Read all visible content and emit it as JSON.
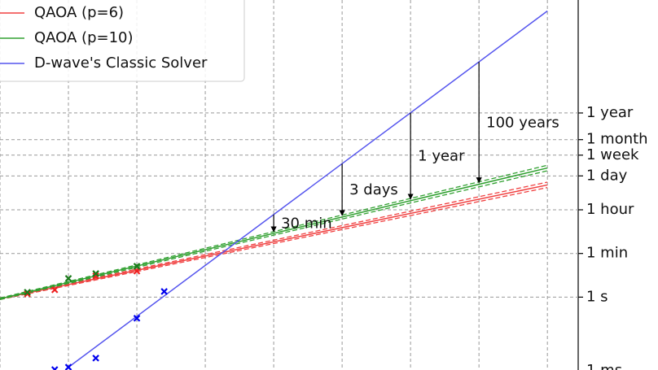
{
  "chart_data": {
    "type": "line",
    "ylog": true,
    "grid": true,
    "legend": "upper left",
    "xlim": [
      0,
      8.45
    ],
    "xticks": [
      0,
      1,
      2,
      3,
      4,
      5,
      6,
      7,
      8
    ],
    "ylim": [
      0.001,
      1000000000000
    ],
    "yticks": [
      {
        "value": 0.001,
        "label": "1 ms"
      },
      {
        "value": 1,
        "label": "1 s"
      },
      {
        "value": 60,
        "label": "1 min"
      },
      {
        "value": 3600,
        "label": "1 hour"
      },
      {
        "value": 86400,
        "label": "1 day"
      },
      {
        "value": 604800,
        "label": "1 week"
      },
      {
        "value": 2592000,
        "label": "1 month"
      },
      {
        "value": 31536000,
        "label": "1 year"
      }
    ],
    "series": [
      {
        "name": "QAOA (p=6)",
        "color": "#f04040",
        "x": [
          0,
          8
        ],
        "values": [
          0.86,
          37000
        ],
        "ci_upper": [
          0.92,
          48000
        ],
        "ci_lower": [
          0.8,
          29000
        ]
      },
      {
        "name": "QAOA (p=10)",
        "color": "#30a030",
        "x": [
          0,
          8
        ],
        "values": [
          0.86,
          182000
        ],
        "ci_upper": [
          0.92,
          235000
        ],
        "ci_lower": [
          0.8,
          140000
        ]
      },
      {
        "name": "D-wave's Classic Solver",
        "color": "#5555ee",
        "x": [
          1,
          8
        ],
        "values": [
          0.0014,
          450000000000
        ]
      }
    ],
    "points": [
      {
        "color": "#ee2020",
        "x": [
          0.4,
          0.8,
          1.4,
          2
        ],
        "values": [
          1.36,
          1.99,
          7.3,
          11.5
        ]
      },
      {
        "color": "#1a7a1a",
        "x": [
          0.4,
          1,
          1.4,
          2
        ],
        "values": [
          1.58,
          5.8,
          9.1,
          18.1
        ]
      },
      {
        "color": "#0000ee",
        "x": [
          0.8,
          1,
          1.4,
          2,
          2.4
        ],
        "values": [
          0.00112,
          0.0014,
          0.0033,
          0.138,
          1.7
        ]
      }
    ],
    "annotations": [
      {
        "text": "30 min",
        "x": 4
      },
      {
        "text": "3 days",
        "x": 5
      },
      {
        "text": "1 year",
        "x": 6
      },
      {
        "text": "100 years",
        "x": 7
      }
    ]
  }
}
